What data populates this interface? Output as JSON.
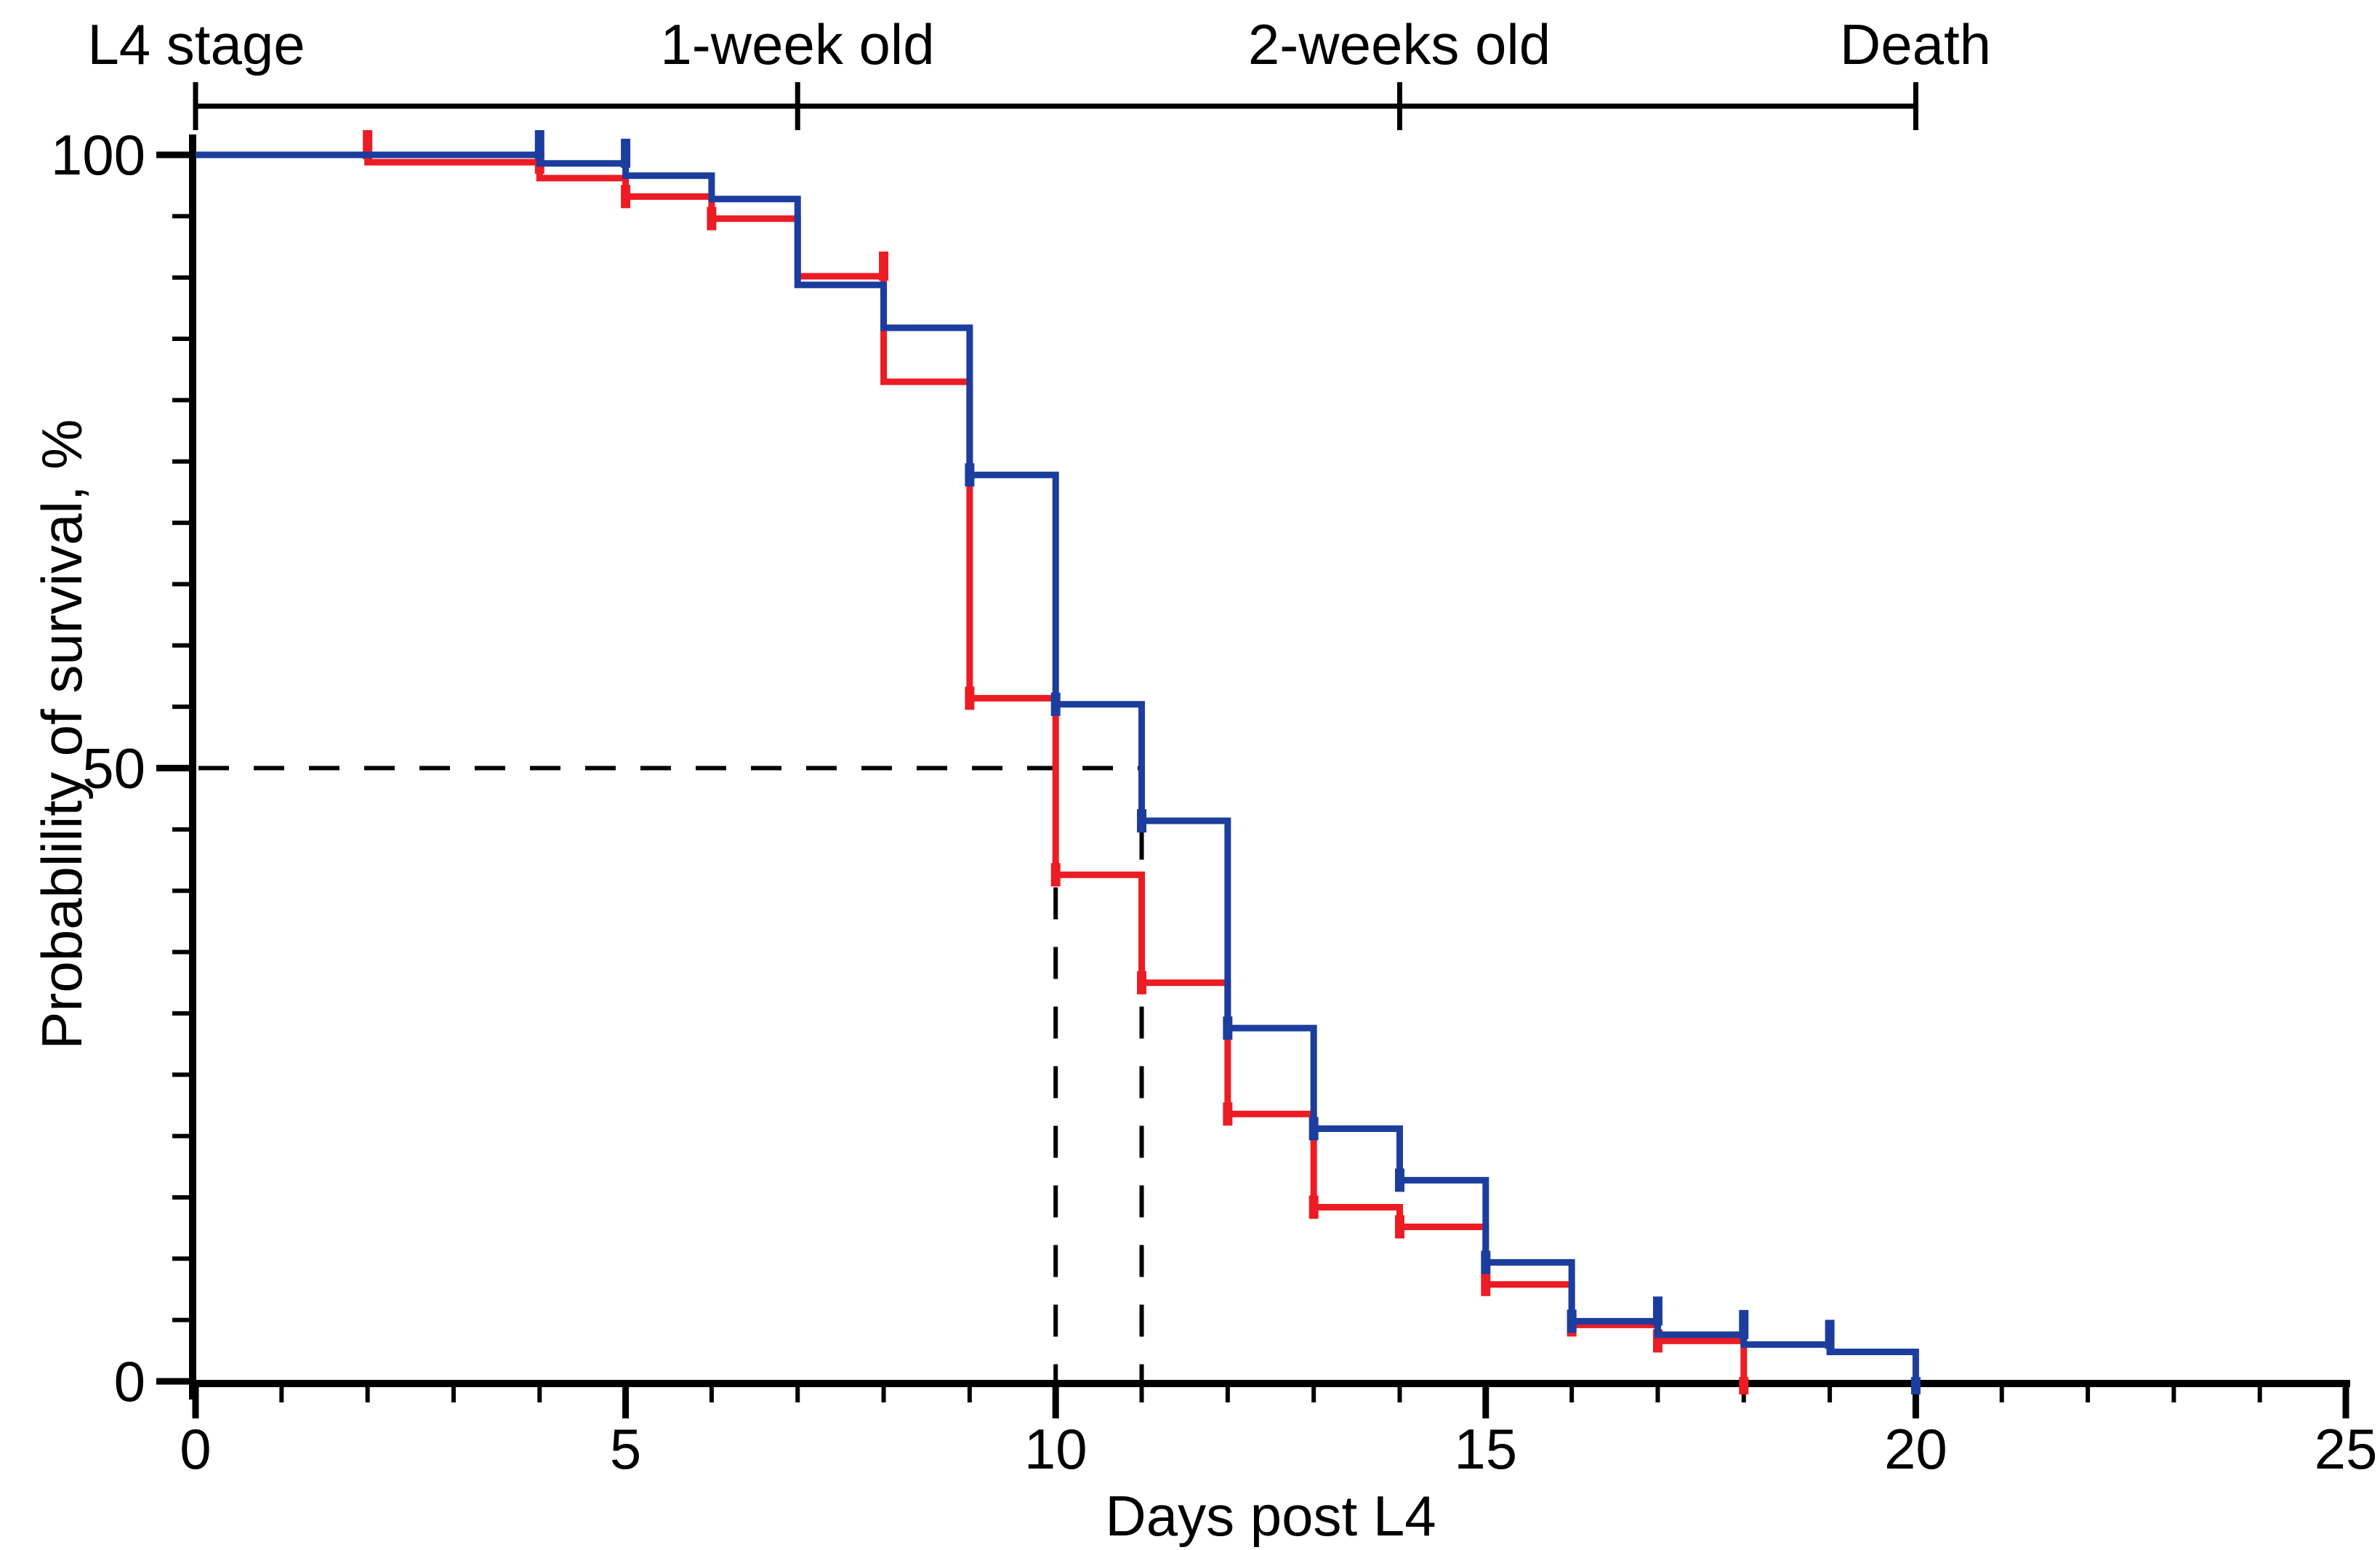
{
  "figure": {
    "background": "#ffffff",
    "timeline": {
      "line_day_start": 0,
      "line_day_end": 20,
      "tick_days": [
        0,
        7,
        14,
        20
      ],
      "labels": [
        {
          "text": "L4 stage",
          "day": 0
        },
        {
          "text": "1-week old",
          "day": 7
        },
        {
          "text": "2-weeks old",
          "day": 14
        },
        {
          "text": "Death",
          "day": 20
        }
      ]
    },
    "colors": {
      "blue": "#1b3d9e",
      "red": "#ec1c24",
      "axis": "#000000"
    }
  },
  "chart_data": {
    "type": "line",
    "subtype": "kaplan-meier-step",
    "title": "",
    "xlabel": "Days post L4",
    "ylabel": "Probablility of survival, %",
    "xlim": [
      0,
      25
    ],
    "ylim": [
      0,
      100
    ],
    "x_major_ticks": [
      0,
      5,
      10,
      15,
      20,
      25
    ],
    "x_minor_step": 1,
    "y_major_ticks": [
      0,
      50,
      100
    ],
    "y_minor_step": 5,
    "grid": false,
    "legend": "none",
    "median_guides": {
      "y": 50,
      "x_values": [
        10,
        11
      ],
      "style": "dashed"
    },
    "series": [
      {
        "name": "blue-group",
        "color": "#1b3d9e",
        "style": "step-after",
        "steps": [
          [
            0,
            100
          ],
          [
            4,
            99.3
          ],
          [
            5,
            98.3
          ],
          [
            6,
            96.4
          ],
          [
            7,
            89.4
          ],
          [
            8,
            85.9
          ],
          [
            9,
            73.9
          ],
          [
            10,
            55.2
          ],
          [
            11,
            45.7
          ],
          [
            12,
            28.8
          ],
          [
            13,
            20.6
          ],
          [
            14,
            16.4
          ],
          [
            15,
            9.7
          ],
          [
            16,
            4.9
          ],
          [
            17,
            3.8
          ],
          [
            18,
            3.0
          ],
          [
            19,
            2.4
          ],
          [
            20,
            0
          ]
        ],
        "ticks_up": [
          [
            4,
            100
          ],
          [
            5,
            99.3
          ],
          [
            17,
            4.9
          ],
          [
            18,
            3.8
          ],
          [
            19,
            3.0
          ]
        ],
        "ticks_dot": [
          [
            9,
            73.9
          ],
          [
            10,
            55.2
          ],
          [
            11,
            45.7
          ],
          [
            12,
            28.8
          ],
          [
            13,
            20.6
          ],
          [
            14,
            16.4
          ],
          [
            15,
            9.7
          ],
          [
            16,
            4.9
          ]
        ],
        "ticks_down": [
          [
            20,
            0
          ]
        ],
        "median_day": 11
      },
      {
        "name": "red-group",
        "color": "#ec1c24",
        "style": "step-after",
        "steps": [
          [
            0,
            100
          ],
          [
            2,
            99.4
          ],
          [
            4,
            98.1
          ],
          [
            5,
            96.6
          ],
          [
            6,
            94.8
          ],
          [
            7,
            90.1
          ],
          [
            8,
            81.5
          ],
          [
            9,
            55.7
          ],
          [
            10,
            41.3
          ],
          [
            11,
            32.5
          ],
          [
            12,
            21.8
          ],
          [
            13,
            14.2
          ],
          [
            14,
            12.6
          ],
          [
            15,
            7.9
          ],
          [
            16,
            4.6
          ],
          [
            17,
            3.3
          ],
          [
            18,
            0
          ]
        ],
        "ticks_up": [
          [
            2,
            100
          ],
          [
            8,
            90.1
          ]
        ],
        "ticks_dot": [
          [
            4,
            99.4
          ],
          [
            5,
            96.6
          ],
          [
            6,
            94.8
          ],
          [
            9,
            55.7
          ],
          [
            10,
            41.3
          ],
          [
            11,
            32.5
          ],
          [
            12,
            21.8
          ],
          [
            13,
            14.2
          ],
          [
            14,
            12.6
          ],
          [
            15,
            7.9
          ],
          [
            16,
            4.6
          ],
          [
            17,
            3.3
          ]
        ],
        "ticks_down": [
          [
            18,
            0
          ]
        ],
        "median_day": 10
      }
    ]
  }
}
